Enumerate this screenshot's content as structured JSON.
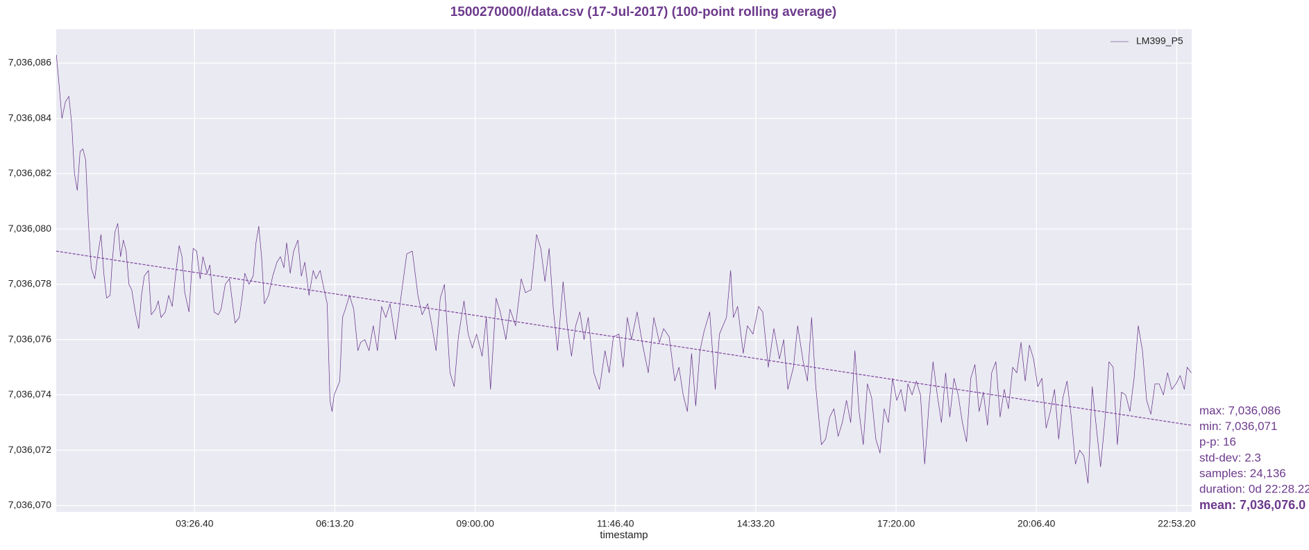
{
  "chart_data": {
    "type": "line",
    "title": "1500270000//data.csv (17-Jul-2017) (100-point rolling average)",
    "xlabel": "timestamp",
    "xlim": [
      2540,
      83470
    ],
    "xticks": [
      {
        "value": 12400,
        "label": "03:26.40"
      },
      {
        "value": 22400,
        "label": "06:13.20"
      },
      {
        "value": 32400,
        "label": "09:00.00"
      },
      {
        "value": 42400,
        "label": "11:46.40"
      },
      {
        "value": 52400,
        "label": "14:33.20"
      },
      {
        "value": 62400,
        "label": "17:20.00"
      },
      {
        "value": 72400,
        "label": "20:06.40"
      },
      {
        "value": 82400,
        "label": "22:53.20"
      }
    ],
    "ylim": [
      7036069.77,
      7036087.23
    ],
    "yticks": [
      {
        "value": 7036070,
        "label": "7,036,070"
      },
      {
        "value": 7036072,
        "label": "7,036,072"
      },
      {
        "value": 7036074,
        "label": "7,036,074"
      },
      {
        "value": 7036076,
        "label": "7,036,076"
      },
      {
        "value": 7036078,
        "label": "7,036,078"
      },
      {
        "value": 7036080,
        "label": "7,036,080"
      },
      {
        "value": 7036082,
        "label": "7,036,082"
      },
      {
        "value": 7036084,
        "label": "7,036,084"
      },
      {
        "value": 7036086,
        "label": "7,036,086"
      }
    ],
    "grid": true,
    "legend": "upper right",
    "series": [
      {
        "name": "LM399_P5",
        "color": "#5e2a84",
        "x": [
          2549,
          2748,
          2947,
          3196,
          3444,
          3643,
          3842,
          4041,
          4240,
          4439,
          4638,
          4837,
          5036,
          5285,
          5484,
          5733,
          5932,
          6131,
          6380,
          6529,
          6728,
          6927,
          7126,
          7325,
          7524,
          7723,
          7922,
          8171,
          8420,
          8619,
          8818,
          9116,
          9315,
          9614,
          9813,
          10012,
          10310,
          10559,
          10808,
          11106,
          11305,
          11504,
          11703,
          12002,
          12300,
          12549,
          12798,
          12997,
          13295,
          13494,
          13793,
          14091,
          14290,
          14589,
          14887,
          15285,
          15584,
          15783,
          15982,
          16280,
          16579,
          16778,
          16977,
          17176,
          17375,
          17673,
          17972,
          18271,
          18519,
          18768,
          18967,
          19216,
          19464,
          19763,
          20011,
          20260,
          20559,
          20857,
          21056,
          21355,
          21554,
          21852,
          22051,
          22200,
          22350,
          22748,
          22946,
          23146,
          23444,
          23743,
          24041,
          24240,
          24539,
          24837,
          25136,
          25434,
          25733,
          26031,
          26330,
          26728,
          27126,
          27524,
          27922,
          28320,
          28618,
          29016,
          29315,
          29613,
          29912,
          30210,
          30608,
          30907,
          31205,
          31603,
          31902,
          32200,
          32499,
          32897,
          33195,
          33494,
          33892,
          34190,
          34588,
          34887,
          35285,
          35683,
          35981,
          36379,
          36777,
          37076,
          37374,
          37673,
          37971,
          38270,
          38668,
          38966,
          39265,
          39563,
          39862,
          40160,
          40459,
          40857,
          41255,
          41653,
          41951,
          42250,
          42648,
          42946,
          43245,
          43543,
          43941,
          44339,
          44737,
          45135,
          45533,
          45832,
          46230,
          46628,
          46926,
          47225,
          47523,
          47822,
          48120,
          48419,
          48717,
          49115,
          49513,
          49812,
          50309,
          50608,
          50807,
          51105,
          51503,
          51802,
          52200,
          52598,
          52896,
          53294,
          53692,
          54090,
          54389,
          54687,
          55085,
          55384,
          55782,
          56080,
          56379,
          56677,
          57075,
          57374,
          57672,
          57971,
          58269,
          58568,
          58866,
          59165,
          59463,
          59762,
          60060,
          60359,
          60657,
          60956,
          61254,
          61553,
          61851,
          62150,
          62448,
          62747,
          63045,
          63244,
          63543,
          63841,
          64140,
          64438,
          64737,
          65035,
          65334,
          65632,
          65931,
          66229,
          66528,
          66826,
          67125,
          67423,
          67722,
          68020,
          68319,
          68617,
          68916,
          69214,
          69513,
          69811,
          70110,
          70408,
          70707,
          71005,
          71304,
          71602,
          71901,
          72199,
          72498,
          72796,
          73095,
          73393,
          73692,
          73990,
          74289,
          74587,
          74886,
          75184,
          75483,
          75781,
          76080,
          76378,
          76677,
          76975,
          77274,
          77572,
          77871,
          78169,
          78468,
          78766,
          79065,
          79363,
          79662,
          79960,
          80259,
          80557,
          80856,
          81154,
          81453,
          81751,
          82050,
          82348,
          82647,
          82945,
          83144,
          83442
        ],
        "values": [
          7036086.3,
          7036085.2,
          7036084.0,
          7036084.6,
          7036084.8,
          7036083.8,
          7036082.0,
          7036081.4,
          7036082.8,
          7036082.9,
          7036082.5,
          7036080.2,
          7036078.6,
          7036078.2,
          7036079.0,
          7036079.8,
          7036078.4,
          7036077.5,
          7036077.6,
          7036078.8,
          7036079.9,
          7036080.2,
          7036079.0,
          7036079.6,
          7036079.2,
          7036078.0,
          7036077.8,
          7036077.0,
          7036076.4,
          7036077.6,
          7036078.3,
          7036078.5,
          7036076.9,
          7036077.1,
          7036077.4,
          7036076.8,
          7036077.0,
          7036077.6,
          7036077.2,
          7036078.6,
          7036079.4,
          7036079.0,
          7036077.7,
          7036077.0,
          7036079.3,
          7036079.2,
          7036078.2,
          7036079.0,
          7036078.4,
          7036078.7,
          7036077.0,
          7036076.9,
          7036077.1,
          7036078.0,
          7036078.2,
          7036076.6,
          7036076.8,
          7036077.5,
          7036078.4,
          7036078.0,
          7036078.3,
          7036079.5,
          7036080.1,
          7036079.0,
          7036077.3,
          7036077.6,
          7036078.3,
          7036078.8,
          7036079.0,
          7036078.6,
          7036079.5,
          7036078.4,
          7036079.2,
          7036079.6,
          7036078.3,
          7036078.8,
          7036077.6,
          7036078.5,
          7036078.2,
          7036078.5,
          7036078.0,
          7036077.3,
          7036073.8,
          7036073.4,
          7036074.0,
          7036074.5,
          7036076.8,
          7036077.1,
          7036077.6,
          7036077.1,
          7036075.6,
          7036075.9,
          7036076.0,
          7036075.6,
          7036076.5,
          7036075.6,
          7036077.2,
          7036076.8,
          7036077.3,
          7036076.0,
          7036077.6,
          7036079.1,
          7036079.2,
          7036077.6,
          7036076.9,
          7036077.3,
          7036076.5,
          7036075.6,
          7036077.5,
          7036078.0,
          7036074.8,
          7036074.3,
          7036076.1,
          7036077.4,
          7036076.2,
          7036075.7,
          7036076.2,
          7036075.4,
          7036076.8,
          7036074.2,
          7036077.5,
          7036077.0,
          7036076.0,
          7036077.1,
          7036076.5,
          7036078.2,
          7036077.7,
          7036077.8,
          7036079.8,
          7036079.3,
          7036078.1,
          7036079.3,
          7036077.1,
          7036075.6,
          7036078.1,
          7036076.5,
          7036075.4,
          7036076.5,
          7036077.0,
          7036076.0,
          7036076.8,
          7036074.8,
          7036074.2,
          7036075.6,
          7036074.8,
          7036076.1,
          7036076.2,
          7036075.0,
          7036076.8,
          7036076.0,
          7036077.0,
          7036075.8,
          7036074.8,
          7036076.8,
          7036075.9,
          7036076.4,
          7036076.1,
          7036074.5,
          7036075.0,
          7036074.0,
          7036073.4,
          7036075.5,
          7036073.6,
          7036075.6,
          7036076.3,
          7036077.0,
          7036074.2,
          7036076.2,
          7036076.8,
          7036078.5,
          7036076.8,
          7036077.2,
          7036075.5,
          7036076.5,
          7036076.2,
          7036077.2,
          7036077.0,
          7036075.0,
          7036076.4,
          7036075.3,
          7036076.0,
          7036074.2,
          7036075.0,
          7036076.5,
          7036075.2,
          7036074.5,
          7036076.8,
          7036074.3,
          7036072.2,
          7036072.4,
          7036073.2,
          7036073.5,
          7036072.5,
          7036073.0,
          7036073.8,
          7036073.0,
          7036075.6,
          7036073.4,
          7036072.2,
          7036074.4,
          7036073.9,
          7036072.4,
          7036071.9,
          7036073.5,
          7036073.0,
          7036074.6,
          7036073.8,
          7036074.2,
          7036073.4,
          7036074.4,
          7036074.0,
          7036074.5,
          7036074.0,
          7036071.5,
          7036073.6,
          7036075.2,
          7036074.0,
          7036073.0,
          7036074.8,
          7036073.2,
          7036074.6,
          7036074.0,
          7036073.0,
          7036072.3,
          7036074.6,
          7036075.1,
          7036073.4,
          7036074.1,
          7036072.9,
          7036074.8,
          7036075.2,
          7036073.2,
          7036074.2,
          7036073.5,
          7036075.0,
          7036074.8,
          7036075.9,
          7036074.5,
          7036075.8,
          7036075.3,
          7036074.3,
          7036074.6,
          7036072.8,
          7036073.4,
          7036074.2,
          7036072.4,
          7036073.9,
          7036074.5,
          7036073.2,
          7036071.5,
          7036072.0,
          7036071.8,
          7036070.8,
          7036074.3,
          7036072.8,
          7036071.4,
          7036073.0,
          7036075.2,
          7036075.0,
          7036072.2,
          7036074.1,
          7036074.0,
          7036073.4,
          7036074.6,
          7036076.5,
          7036075.6,
          7036073.8,
          7036073.3,
          7036074.4,
          7036074.4,
          7036074.0,
          7036074.8,
          7036074.2,
          7036074.4,
          7036074.7,
          7036074.2,
          7036075.0,
          7036074.8
        ]
      }
    ],
    "trend": {
      "color": "#7b3f9e",
      "dashed": true,
      "x": [
        2540,
        83470
      ],
      "values": [
        7036079.2,
        7036072.9
      ]
    },
    "stats": [
      "max: 7,036,086",
      "min: 7,036,071",
      "p-p: 16",
      "std-dev: 2.3",
      "samples: 24,136",
      "duration: 0d 22:28.22"
    ],
    "mean": "mean: 7,036,076.0"
  }
}
